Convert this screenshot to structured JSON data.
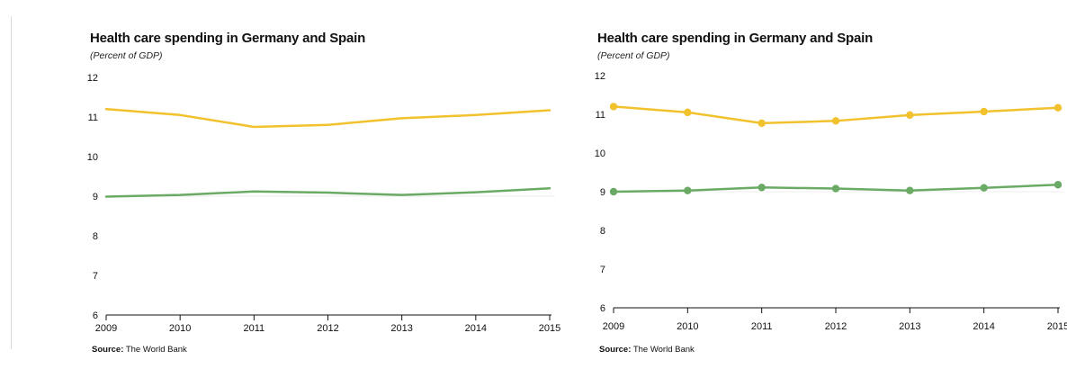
{
  "chart_data": [
    {
      "type": "line",
      "title": "Health care spending in Germany and Spain",
      "subtitle": "(Percent of GDP)",
      "source_label": "Source:",
      "source_text": "The World Bank",
      "x": [
        2009,
        2010,
        2011,
        2012,
        2013,
        2014,
        2015
      ],
      "x_tick_labels": [
        "2009",
        "2010",
        "2011",
        "2012",
        "2013",
        "2014",
        "2015"
      ],
      "ylim": [
        6,
        12
      ],
      "y_ticks": [
        6,
        7,
        8,
        9,
        10,
        11,
        12
      ],
      "y_tick_labels": [
        "6",
        "7",
        "8",
        "9",
        "10",
        "11",
        "12"
      ],
      "markers": false,
      "grid": false,
      "series": [
        {
          "color": "#f2c12e",
          "values": [
            11.2,
            11.05,
            10.75,
            10.8,
            10.97,
            11.05,
            11.17
          ]
        },
        {
          "color": "#6aaa64",
          "values": [
            8.99,
            9.03,
            9.12,
            9.09,
            9.03,
            9.1,
            9.2
          ]
        }
      ]
    },
    {
      "type": "line",
      "title": "Health care spending in Germany and Spain",
      "subtitle": "(Percent of GDP)",
      "source_label": "Source:",
      "source_text": "The World Bank",
      "x": [
        2009,
        2010,
        2011,
        2012,
        2013,
        2014,
        2015
      ],
      "x_tick_labels": [
        "2009",
        "2010",
        "2011",
        "2012",
        "2013",
        "2014",
        "2015"
      ],
      "ylim": [
        6,
        12
      ],
      "y_ticks": [
        6,
        7,
        8,
        9,
        10,
        11,
        12
      ],
      "y_tick_labels": [
        "6",
        "7",
        "8",
        "9",
        "10",
        "11",
        "12"
      ],
      "markers": true,
      "grid": false,
      "series": [
        {
          "color": "#f2c12e",
          "values": [
            11.2,
            11.05,
            10.77,
            10.83,
            10.98,
            11.07,
            11.17
          ]
        },
        {
          "color": "#6aaa64",
          "values": [
            9.0,
            9.03,
            9.11,
            9.08,
            9.03,
            9.1,
            9.18
          ]
        }
      ]
    }
  ]
}
